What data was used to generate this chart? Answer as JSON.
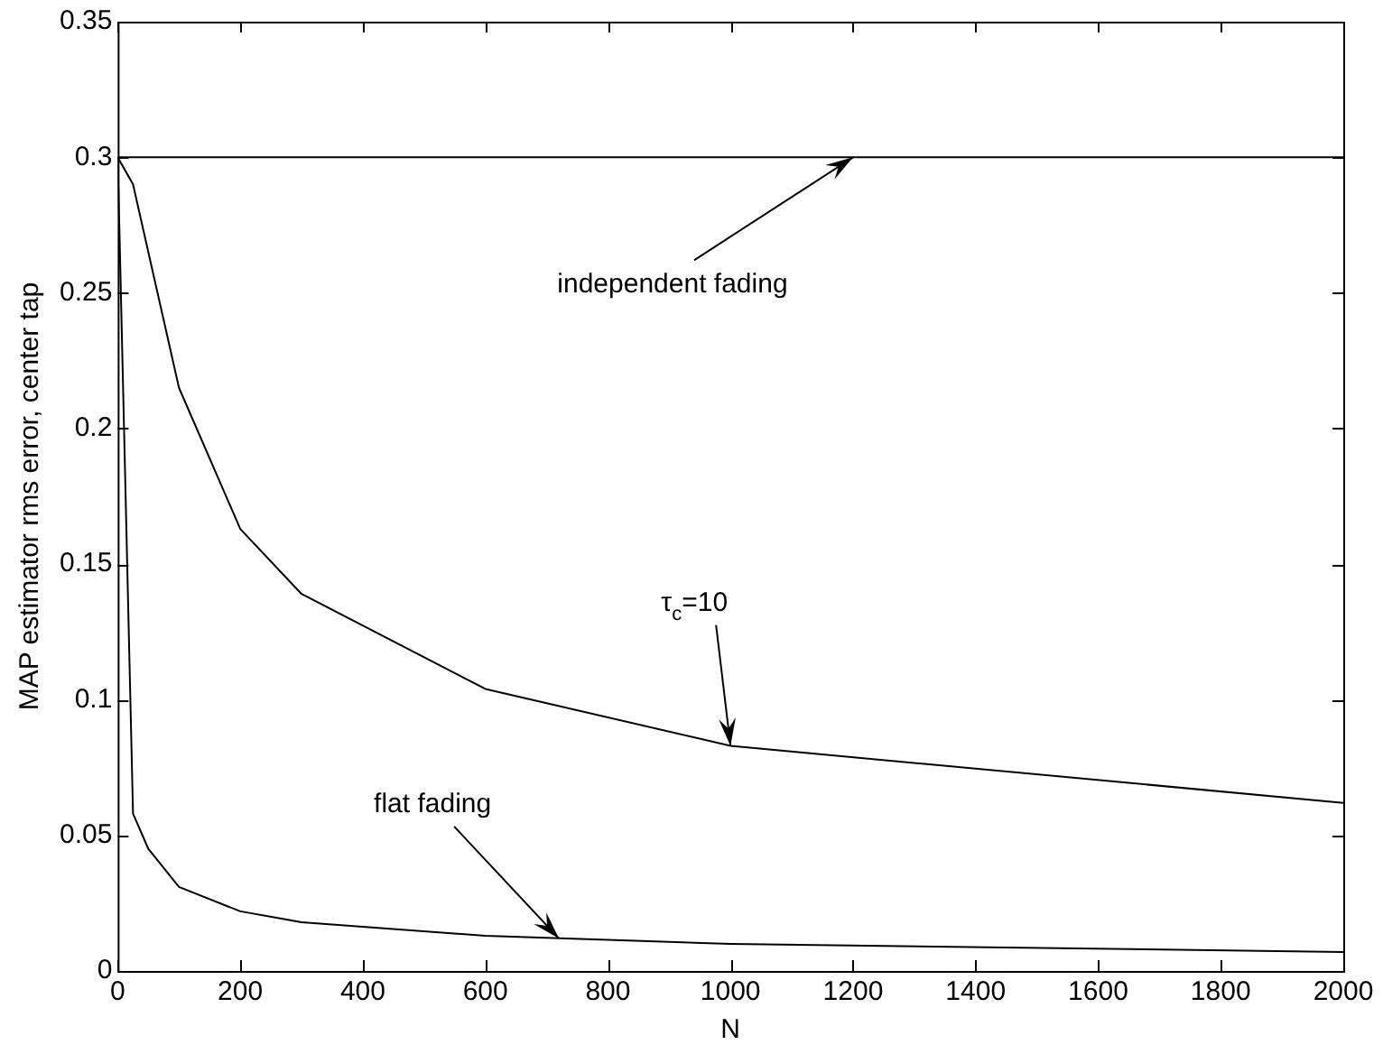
{
  "chart_data": {
    "type": "line",
    "xlabel": "N",
    "ylabel": "MAP estimator rms error, center tap",
    "xlim": [
      0,
      2000
    ],
    "xticks": [
      0,
      200,
      400,
      600,
      800,
      1000,
      1200,
      1400,
      1600,
      1800,
      2000
    ],
    "ylim": [
      0,
      0.35
    ],
    "yticks": [
      0,
      0.05,
      0.1,
      0.15,
      0.2,
      0.25,
      0.3,
      0.35
    ],
    "grid": false,
    "legend": false,
    "marker": "none",
    "line_style": "solid",
    "series": [
      {
        "color": "#000000",
        "x": [
          0,
          2000
        ],
        "values": [
          0.3,
          0.3
        ]
      },
      {
        "color": "#000000",
        "x": [
          0,
          25,
          100,
          200,
          300,
          600,
          1000,
          2000
        ],
        "values": [
          0.3,
          0.29,
          0.215,
          0.163,
          0.139,
          0.104,
          0.083,
          0.062
        ]
      },
      {
        "color": "#000000",
        "x": [
          0,
          25,
          50,
          100,
          200,
          300,
          600,
          1000,
          2000
        ],
        "values": [
          0.3,
          0.058,
          0.045,
          0.031,
          0.022,
          0.018,
          0.013,
          0.01,
          0.007
        ]
      }
    ],
    "annotations": [
      {
        "text": "independent fading",
        "x": 1200,
        "y": 0.3
      },
      {
        "text": "τ$_{c}$=10",
        "x": 1000,
        "y": 0.083
      },
      {
        "text": "flat fading",
        "x": 720,
        "y": 0.012
      }
    ]
  }
}
